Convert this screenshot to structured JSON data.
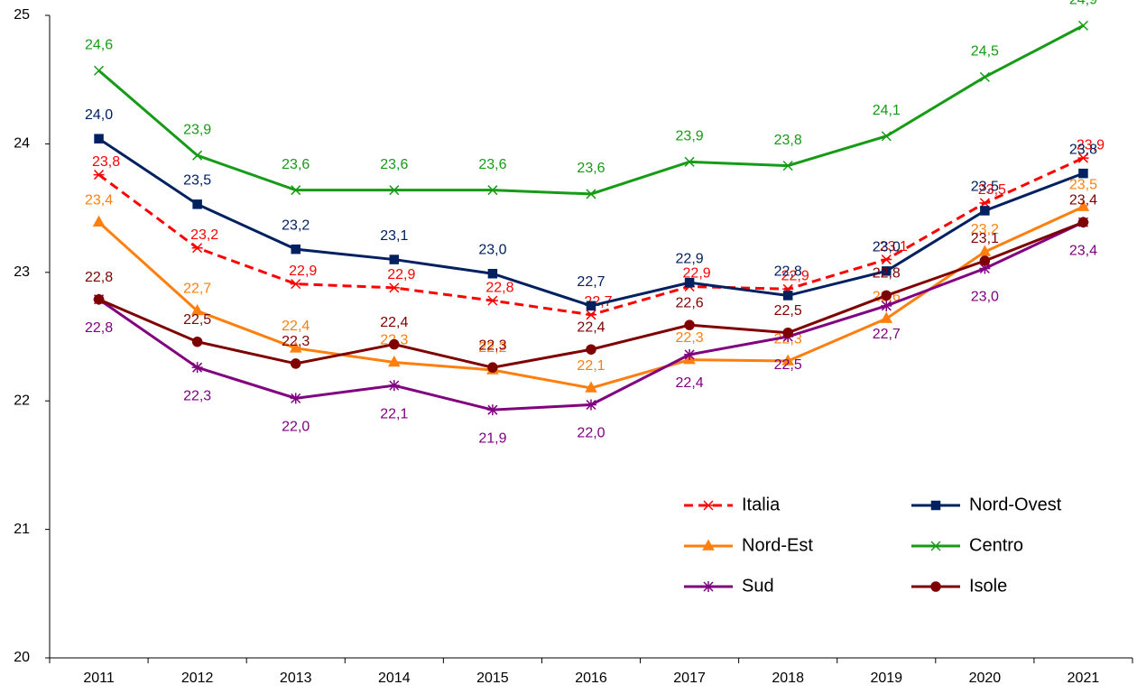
{
  "chart_data": {
    "type": "line",
    "categories": [
      "2011",
      "2012",
      "2013",
      "2014",
      "2015",
      "2016",
      "2017",
      "2018",
      "2019",
      "2020",
      "2021"
    ],
    "ylim": [
      20,
      25
    ],
    "yticks": [
      20,
      21,
      22,
      23,
      24,
      25
    ],
    "grid": false,
    "series": [
      {
        "name": "Italia",
        "color": "#ff0000",
        "dashed": true,
        "marker": "asterisk",
        "values": [
          23.76,
          23.19,
          22.91,
          22.88,
          22.78,
          22.67,
          22.89,
          22.87,
          23.1,
          23.54,
          23.89
        ],
        "value_labels": [
          "23,8",
          "23,2",
          "22,9",
          "22,9",
          "22,8",
          "22,7",
          "22,9",
          "22,9",
          "23,1",
          "23,5",
          "23,9"
        ]
      },
      {
        "name": "Nord-Ovest",
        "color": "#002060",
        "marker": "square",
        "values": [
          24.04,
          23.53,
          23.18,
          23.1,
          22.99,
          22.74,
          22.92,
          22.82,
          23.01,
          23.48,
          23.77
        ],
        "value_labels": [
          "24,0",
          "23,5",
          "23,2",
          "23,1",
          "23,0",
          "22,7",
          "22,9",
          "22,8",
          "23,0",
          "23,5",
          "23,8"
        ]
      },
      {
        "name": "Nord-Est",
        "color": "#ff7f0e",
        "marker": "triangle",
        "values": [
          23.39,
          22.7,
          22.41,
          22.3,
          22.24,
          22.1,
          22.32,
          22.31,
          22.64,
          23.16,
          23.51
        ],
        "value_labels": [
          "23,4",
          "22,7",
          "22,4",
          "22,3",
          "22,2",
          "22,1",
          "22,3",
          "22,3",
          "22,6",
          "23,2",
          "23,5"
        ]
      },
      {
        "name": "Centro",
        "color": "#169b16",
        "marker": "x",
        "values": [
          24.57,
          23.91,
          23.64,
          23.64,
          23.64,
          23.61,
          23.86,
          23.83,
          24.06,
          24.52,
          24.92
        ],
        "value_labels": [
          "24,6",
          "23,9",
          "23,6",
          "23,6",
          "23,6",
          "23,6",
          "23,9",
          "23,8",
          "24,1",
          "24,5",
          "24,9"
        ]
      },
      {
        "name": "Sud",
        "color": "#800080",
        "marker": "star",
        "values": [
          22.79,
          22.26,
          22.02,
          22.12,
          21.93,
          21.97,
          22.36,
          22.5,
          22.74,
          23.03,
          23.39
        ],
        "value_labels": [
          "22,8",
          "22,3",
          "22,0",
          "22,1",
          "21,9",
          "22,0",
          "22,4",
          "22,5",
          "22,7",
          "23,0",
          "23,4"
        ]
      },
      {
        "name": "Isole",
        "color": "#7f0000",
        "marker": "circle",
        "values": [
          22.79,
          22.46,
          22.29,
          22.44,
          22.26,
          22.4,
          22.59,
          22.53,
          22.82,
          23.09,
          23.39
        ],
        "value_labels": [
          "22,8",
          "22,5",
          "22,3",
          "22,4",
          "22,3",
          "22,4",
          "22,6",
          "22,5",
          "22,8",
          "23,1",
          "23,4"
        ]
      }
    ]
  }
}
